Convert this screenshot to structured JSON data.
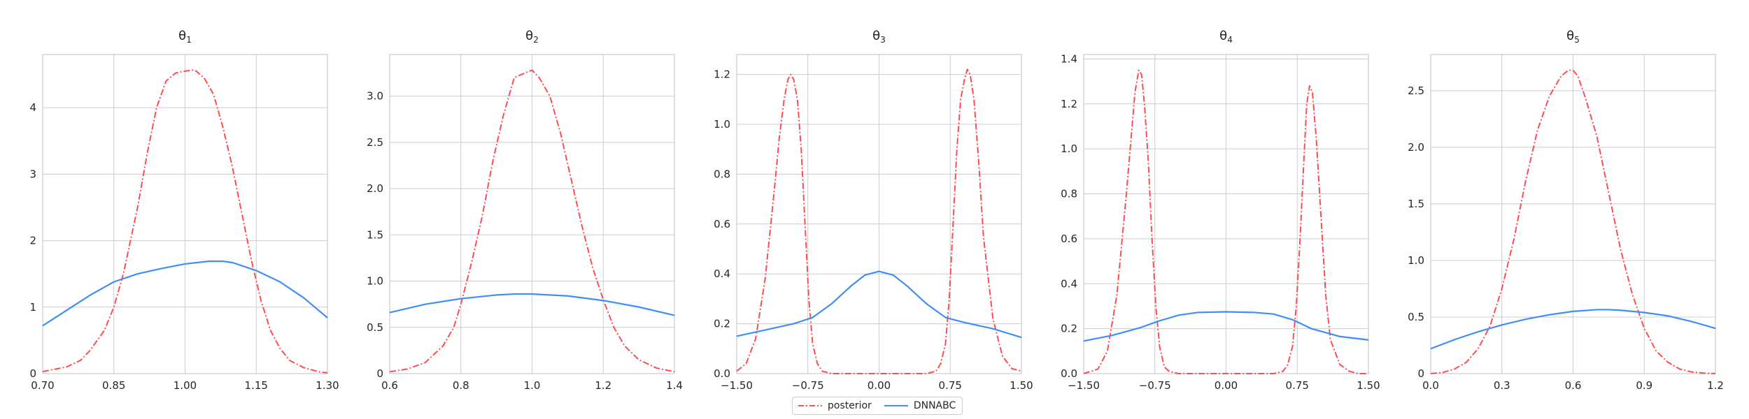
{
  "colors": {
    "posterior": "#ff4d4d",
    "dnnabc": "#3f8ef5",
    "grid": "#cccccc",
    "text": "#262626"
  },
  "legend": {
    "placement": "bottom-center",
    "entries": [
      "posterior",
      "DNNABC"
    ]
  },
  "chart_data": [
    {
      "type": "line",
      "title": "θ1",
      "title_base": "θ",
      "title_sub": "1",
      "xlim": [
        0.7,
        1.3
      ],
      "ylim": [
        0,
        4.8
      ],
      "xticks": [
        0.7,
        0.85,
        1.0,
        1.15,
        1.3
      ],
      "xtick_labels": [
        "0.70",
        "0.85",
        "1.00",
        "1.15",
        "1.30"
      ],
      "yticks": [
        0,
        1,
        2,
        3,
        4
      ],
      "ytick_labels": [
        "0",
        "1",
        "2",
        "3",
        "4"
      ],
      "grid": true,
      "series": [
        {
          "name": "posterior",
          "style": "dashdot",
          "x": [
            0.7,
            0.75,
            0.78,
            0.8,
            0.83,
            0.85,
            0.87,
            0.9,
            0.92,
            0.94,
            0.96,
            0.98,
            1.0,
            1.02,
            1.04,
            1.06,
            1.08,
            1.1,
            1.12,
            1.14,
            1.16,
            1.18,
            1.2,
            1.22,
            1.25,
            1.28,
            1.3
          ],
          "y": [
            0.03,
            0.1,
            0.2,
            0.35,
            0.65,
            1.0,
            1.5,
            2.5,
            3.3,
            4.0,
            4.4,
            4.52,
            4.55,
            4.57,
            4.45,
            4.2,
            3.7,
            3.1,
            2.4,
            1.7,
            1.1,
            0.65,
            0.38,
            0.2,
            0.09,
            0.03,
            0.01
          ]
        },
        {
          "name": "DNNABC",
          "style": "solid",
          "x": [
            0.7,
            0.75,
            0.8,
            0.85,
            0.9,
            0.95,
            1.0,
            1.05,
            1.08,
            1.1,
            1.15,
            1.2,
            1.25,
            1.3
          ],
          "y": [
            0.72,
            0.95,
            1.18,
            1.38,
            1.5,
            1.58,
            1.65,
            1.69,
            1.69,
            1.67,
            1.55,
            1.38,
            1.14,
            0.84
          ]
        }
      ]
    },
    {
      "type": "line",
      "title": "θ2",
      "title_base": "θ",
      "title_sub": "2",
      "xlim": [
        0.6,
        1.4
      ],
      "ylim": [
        0,
        3.45
      ],
      "xticks": [
        0.6,
        0.8,
        1.0,
        1.2,
        1.4
      ],
      "xtick_labels": [
        "0.6",
        "0.8",
        "1.0",
        "1.2",
        "1.4"
      ],
      "yticks": [
        0,
        0.5,
        1.0,
        1.5,
        2.0,
        2.5,
        3.0
      ],
      "ytick_labels": [
        "0",
        "0.5",
        "1.0",
        "1.5",
        "2.0",
        "2.5",
        "3.0"
      ],
      "grid": true,
      "series": [
        {
          "name": "posterior",
          "style": "dashdot",
          "x": [
            0.6,
            0.65,
            0.7,
            0.75,
            0.78,
            0.8,
            0.83,
            0.86,
            0.89,
            0.92,
            0.95,
            0.98,
            1.0,
            1.02,
            1.05,
            1.08,
            1.11,
            1.14,
            1.17,
            1.2,
            1.23,
            1.26,
            1.3,
            1.35,
            1.4
          ],
          "y": [
            0.02,
            0.05,
            0.12,
            0.3,
            0.5,
            0.75,
            1.2,
            1.7,
            2.3,
            2.8,
            3.2,
            3.25,
            3.28,
            3.2,
            3.0,
            2.6,
            2.1,
            1.6,
            1.15,
            0.8,
            0.5,
            0.3,
            0.15,
            0.06,
            0.02
          ]
        },
        {
          "name": "DNNABC",
          "style": "solid",
          "x": [
            0.6,
            0.7,
            0.8,
            0.9,
            0.95,
            1.0,
            1.1,
            1.2,
            1.3,
            1.4
          ],
          "y": [
            0.66,
            0.75,
            0.81,
            0.85,
            0.86,
            0.86,
            0.84,
            0.79,
            0.72,
            0.63
          ]
        }
      ]
    },
    {
      "type": "line",
      "title": "θ3",
      "title_base": "θ",
      "title_sub": "3",
      "xlim": [
        -1.5,
        1.5
      ],
      "ylim": [
        0,
        1.28
      ],
      "xticks": [
        -1.5,
        -0.75,
        0.0,
        0.75,
        1.5
      ],
      "xtick_labels": [
        "−1.50",
        "−0.75",
        "0.00",
        "0.75",
        "1.50"
      ],
      "yticks": [
        0,
        0.2,
        0.4,
        0.6,
        0.8,
        1.0,
        1.2
      ],
      "ytick_labels": [
        "0.0",
        "0.2",
        "0.4",
        "0.6",
        "0.8",
        "1.0",
        "1.2"
      ],
      "grid": true,
      "series": [
        {
          "name": "posterior",
          "style": "dashdot",
          "x": [
            -1.5,
            -1.4,
            -1.3,
            -1.2,
            -1.1,
            -1.05,
            -1.0,
            -0.96,
            -0.93,
            -0.9,
            -0.86,
            -0.82,
            -0.78,
            -0.74,
            -0.7,
            -0.65,
            -0.6,
            -0.5,
            -0.4,
            0.0,
            0.4,
            0.5,
            0.6,
            0.65,
            0.7,
            0.74,
            0.78,
            0.82,
            0.86,
            0.9,
            0.93,
            0.96,
            1.0,
            1.05,
            1.1,
            1.2,
            1.3,
            1.4,
            1.5
          ],
          "y": [
            0.01,
            0.04,
            0.14,
            0.38,
            0.75,
            0.95,
            1.1,
            1.18,
            1.2,
            1.18,
            1.1,
            0.9,
            0.6,
            0.3,
            0.12,
            0.04,
            0.01,
            0,
            0,
            0,
            0,
            0,
            0.01,
            0.04,
            0.12,
            0.3,
            0.6,
            0.9,
            1.1,
            1.18,
            1.22,
            1.2,
            1.1,
            0.85,
            0.55,
            0.22,
            0.07,
            0.02,
            0.01
          ]
        },
        {
          "name": "DNNABC",
          "style": "solid",
          "x": [
            -1.5,
            -1.2,
            -0.9,
            -0.7,
            -0.5,
            -0.3,
            -0.15,
            0.0,
            0.15,
            0.3,
            0.5,
            0.7,
            0.9,
            1.2,
            1.5
          ],
          "y": [
            0.15,
            0.175,
            0.2,
            0.225,
            0.28,
            0.35,
            0.395,
            0.41,
            0.395,
            0.35,
            0.28,
            0.225,
            0.205,
            0.18,
            0.145
          ]
        }
      ]
    },
    {
      "type": "line",
      "title": "θ4",
      "title_base": "θ",
      "title_sub": "4",
      "xlim": [
        -1.5,
        1.5
      ],
      "ylim": [
        0,
        1.42
      ],
      "xticks": [
        -1.5,
        -0.75,
        0.0,
        0.75,
        1.5
      ],
      "xtick_labels": [
        "−1.50",
        "−0.75",
        "0.00",
        "0.75",
        "1.50"
      ],
      "yticks": [
        0,
        0.2,
        0.4,
        0.6,
        0.8,
        1.0,
        1.2,
        1.4
      ],
      "ytick_labels": [
        "0.0",
        "0.2",
        "0.4",
        "0.6",
        "0.8",
        "1.0",
        "1.2",
        "1.4"
      ],
      "grid": true,
      "series": [
        {
          "name": "posterior",
          "style": "dashdot",
          "x": [
            -1.5,
            -1.35,
            -1.25,
            -1.15,
            -1.05,
            -1.0,
            -0.96,
            -0.92,
            -0.89,
            -0.86,
            -0.82,
            -0.78,
            -0.74,
            -0.7,
            -0.65,
            -0.6,
            -0.5,
            -0.4,
            0.0,
            0.4,
            0.5,
            0.6,
            0.65,
            0.7,
            0.74,
            0.78,
            0.82,
            0.85,
            0.88,
            0.91,
            0.95,
            1.0,
            1.05,
            1.1,
            1.2,
            1.3,
            1.4,
            1.5
          ],
          "y": [
            0,
            0.02,
            0.1,
            0.35,
            0.8,
            1.05,
            1.25,
            1.35,
            1.33,
            1.2,
            0.95,
            0.6,
            0.3,
            0.12,
            0.03,
            0.01,
            0,
            0,
            0,
            0,
            0,
            0.01,
            0.04,
            0.12,
            0.3,
            0.6,
            0.95,
            1.2,
            1.28,
            1.25,
            1.05,
            0.7,
            0.35,
            0.15,
            0.04,
            0.01,
            0,
            0
          ]
        },
        {
          "name": "DNNABC",
          "style": "solid",
          "x": [
            -1.5,
            -1.2,
            -0.9,
            -0.7,
            -0.5,
            -0.3,
            0.0,
            0.3,
            0.5,
            0.7,
            0.9,
            1.2,
            1.5
          ],
          "y": [
            0.145,
            0.17,
            0.205,
            0.235,
            0.26,
            0.272,
            0.275,
            0.272,
            0.265,
            0.24,
            0.2,
            0.165,
            0.15
          ]
        }
      ]
    },
    {
      "type": "line",
      "title": "θ5",
      "title_base": "θ",
      "title_sub": "5",
      "xlim": [
        0.0,
        1.2
      ],
      "ylim": [
        0,
        2.82
      ],
      "xticks": [
        0.0,
        0.3,
        0.6,
        0.9,
        1.2
      ],
      "xtick_labels": [
        "0.0",
        "0.3",
        "0.6",
        "0.9",
        "1.2"
      ],
      "yticks": [
        0,
        0.5,
        1.0,
        1.5,
        2.0,
        2.5
      ],
      "ytick_labels": [
        "0",
        "0.5",
        "1.0",
        "1.5",
        "2.0",
        "2.5"
      ],
      "grid": true,
      "series": [
        {
          "name": "posterior",
          "style": "dashdot",
          "x": [
            0.0,
            0.05,
            0.1,
            0.15,
            0.2,
            0.25,
            0.3,
            0.35,
            0.4,
            0.45,
            0.5,
            0.55,
            0.58,
            0.6,
            0.62,
            0.65,
            0.7,
            0.75,
            0.8,
            0.85,
            0.9,
            0.95,
            1.0,
            1.05,
            1.1,
            1.15,
            1.2
          ],
          "y": [
            0.0,
            0.01,
            0.04,
            0.1,
            0.22,
            0.42,
            0.75,
            1.18,
            1.7,
            2.15,
            2.45,
            2.63,
            2.68,
            2.68,
            2.63,
            2.45,
            2.1,
            1.6,
            1.1,
            0.7,
            0.4,
            0.2,
            0.1,
            0.04,
            0.015,
            0.005,
            0.0
          ]
        },
        {
          "name": "DNNABC",
          "style": "solid",
          "x": [
            0.0,
            0.1,
            0.2,
            0.3,
            0.4,
            0.5,
            0.6,
            0.7,
            0.75,
            0.8,
            0.9,
            1.0,
            1.1,
            1.2
          ],
          "y": [
            0.22,
            0.3,
            0.37,
            0.43,
            0.48,
            0.52,
            0.55,
            0.565,
            0.565,
            0.56,
            0.54,
            0.51,
            0.46,
            0.4
          ]
        }
      ]
    }
  ]
}
